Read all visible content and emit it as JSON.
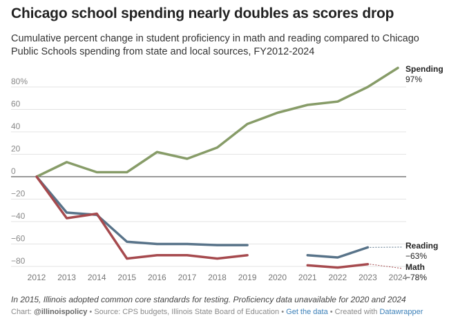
{
  "title": "Chicago school spending nearly doubles as scores drop",
  "subtitle": "Cumulative percent change in student proficiency in math and reading compared to Chicago Public Schools spending from state and local sources, FY2012-2024",
  "chart_data": {
    "type": "line",
    "x": [
      2012,
      2013,
      2014,
      2015,
      2016,
      2017,
      2018,
      2019,
      2020,
      2021,
      2022,
      2023,
      2024
    ],
    "ylim": [
      -85,
      100
    ],
    "yticks": [
      80,
      60,
      40,
      20,
      0,
      -20,
      -40,
      -60,
      -80
    ],
    "ytick_labels": [
      "80%",
      "60",
      "40",
      "20",
      "0",
      "−20",
      "−40",
      "−60",
      "−80"
    ],
    "xtick_labels": [
      "2012",
      "2013",
      "2014",
      "2015",
      "2016",
      "2017",
      "2018",
      "2019",
      "2020",
      "2021",
      "2022",
      "2023",
      "2024"
    ],
    "grid": true,
    "series": [
      {
        "name": "Spending",
        "end_label": "97%",
        "color": "#879c68",
        "values": [
          0,
          13,
          4,
          4,
          22,
          16,
          26,
          47,
          57,
          64,
          67,
          80,
          97
        ]
      },
      {
        "name": "Reading",
        "end_label": "−63%",
        "color": "#587389",
        "values": [
          0,
          -32,
          -34,
          -58,
          -60,
          -60,
          -61,
          -61,
          null,
          -70,
          -72,
          -63,
          null
        ]
      },
      {
        "name": "Math",
        "end_label": "−78%",
        "color": "#a64a4e",
        "values": [
          0,
          -37,
          -33,
          -73,
          -70,
          -70,
          -73,
          -70,
          null,
          -79,
          -81,
          -78,
          null
        ]
      }
    ]
  },
  "notes": "In 2015, Illinois adopted common core standards for testing. Proficiency data unavailable for 2020 and 2024",
  "footer": {
    "chart_prefix": "Chart: ",
    "chart_by": "@illinoispolicy",
    "source": " • Source: CPS budgets, Illinois State Board of Education • ",
    "get_data": "Get the data",
    "created": " • Created with ",
    "datawrapper": "Datawrapper"
  }
}
